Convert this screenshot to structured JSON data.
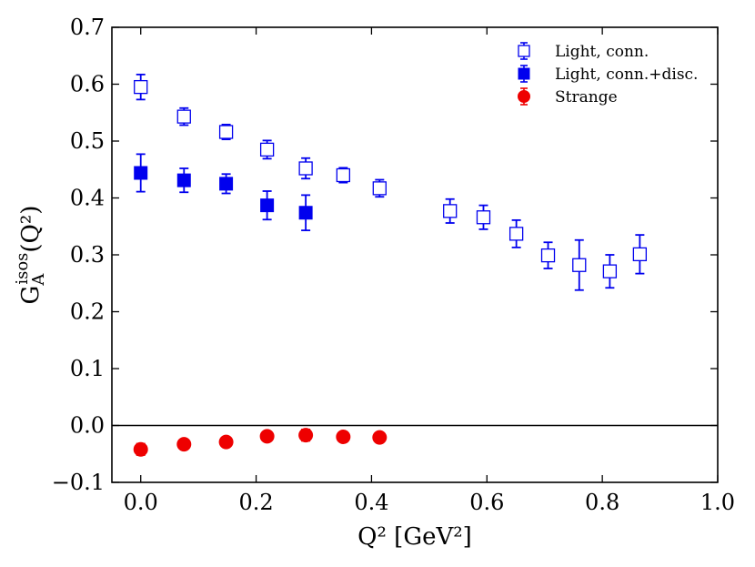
{
  "chart_data": {
    "type": "scatter",
    "xlabel": "Q² [GeV²]",
    "ylabel": "G_A^isos(Q²)",
    "ylabel_parts": {
      "main": "G",
      "sub": "A",
      "sup": "isos",
      "arg": "(Q²)"
    },
    "xlim": [
      -0.05,
      1.0
    ],
    "ylim": [
      -0.1,
      0.7
    ],
    "xticks": [
      0.0,
      0.2,
      0.4,
      0.6,
      0.8,
      1.0
    ],
    "xtick_labels": [
      "0.0",
      "0.2",
      "0.4",
      "0.6",
      "0.8",
      "1.0"
    ],
    "yticks": [
      -0.1,
      0.0,
      0.1,
      0.2,
      0.3,
      0.4,
      0.5,
      0.6,
      0.7
    ],
    "ytick_labels": [
      "−0.1",
      "0.0",
      "0.1",
      "0.2",
      "0.3",
      "0.4",
      "0.5",
      "0.6",
      "0.7"
    ],
    "hline": 0.0,
    "grid": false,
    "legend_position": "top-right",
    "series": [
      {
        "name": "Light, conn.",
        "marker": "square-open",
        "color": "#0000ee",
        "points": [
          {
            "x": 0.0,
            "y": 0.595,
            "err": 0.022
          },
          {
            "x": 0.075,
            "y": 0.543,
            "err": 0.015
          },
          {
            "x": 0.148,
            "y": 0.516,
            "err": 0.013
          },
          {
            "x": 0.219,
            "y": 0.485,
            "err": 0.016
          },
          {
            "x": 0.286,
            "y": 0.452,
            "err": 0.018
          },
          {
            "x": 0.351,
            "y": 0.44,
            "err": 0.013
          },
          {
            "x": 0.414,
            "y": 0.417,
            "err": 0.015
          },
          {
            "x": 0.536,
            "y": 0.377,
            "err": 0.021
          },
          {
            "x": 0.594,
            "y": 0.366,
            "err": 0.021
          },
          {
            "x": 0.651,
            "y": 0.337,
            "err": 0.024
          },
          {
            "x": 0.706,
            "y": 0.299,
            "err": 0.023
          },
          {
            "x": 0.76,
            "y": 0.282,
            "err": 0.044
          },
          {
            "x": 0.813,
            "y": 0.271,
            "err": 0.029
          },
          {
            "x": 0.865,
            "y": 0.301,
            "err": 0.034
          }
        ]
      },
      {
        "name": "Light, conn.+disc.",
        "marker": "square-filled",
        "color": "#0000ee",
        "points": [
          {
            "x": 0.0,
            "y": 0.444,
            "err": 0.033
          },
          {
            "x": 0.075,
            "y": 0.431,
            "err": 0.021
          },
          {
            "x": 0.148,
            "y": 0.425,
            "err": 0.017
          },
          {
            "x": 0.219,
            "y": 0.387,
            "err": 0.025
          },
          {
            "x": 0.286,
            "y": 0.374,
            "err": 0.031
          }
        ]
      },
      {
        "name": "Strange",
        "marker": "circle-filled",
        "color": "#ee0000",
        "points": [
          {
            "x": 0.0,
            "y": -0.042,
            "err": 0.01
          },
          {
            "x": 0.075,
            "y": -0.033,
            "err": 0.006
          },
          {
            "x": 0.148,
            "y": -0.029,
            "err": 0.006
          },
          {
            "x": 0.219,
            "y": -0.019,
            "err": 0.007
          },
          {
            "x": 0.286,
            "y": -0.017,
            "err": 0.01
          },
          {
            "x": 0.351,
            "y": -0.02,
            "err": 0.006
          },
          {
            "x": 0.414,
            "y": -0.021,
            "err": 0.006
          }
        ]
      }
    ]
  }
}
